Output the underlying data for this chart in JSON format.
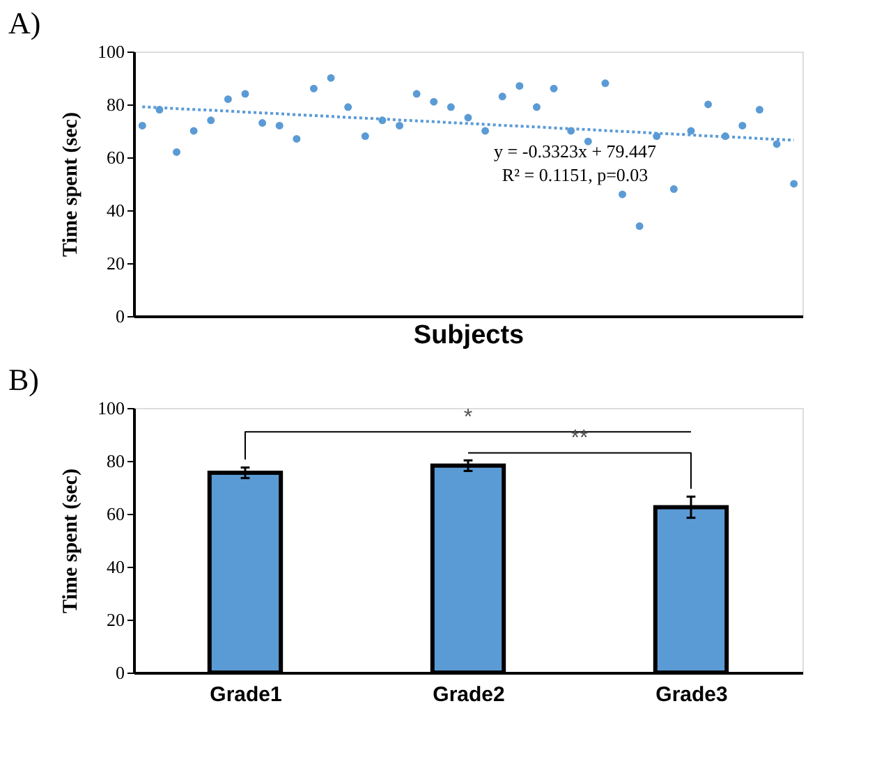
{
  "chart_data": [
    {
      "type": "scatter",
      "title": "A)",
      "xlabel": "Subjects",
      "ylabel": "Time spent (sec)",
      "ylim": [
        0,
        100
      ],
      "yticks": [
        0,
        20,
        40,
        60,
        80,
        100
      ],
      "grid": false,
      "categories": [
        null,
        null,
        null,
        null,
        null,
        null,
        null,
        null,
        null,
        null,
        null,
        null,
        null,
        null,
        null,
        null,
        null,
        null,
        null,
        null,
        null,
        null,
        null,
        null,
        null,
        null,
        null,
        null,
        null,
        null,
        null,
        null,
        null,
        null,
        null,
        null,
        null,
        null,
        null
      ],
      "series": [
        {
          "type": "scatter",
          "marker": "circle",
          "color": "#5b9bd5",
          "values": [
            72,
            78,
            62,
            70,
            74,
            82,
            84,
            73,
            72,
            67,
            86,
            90,
            79,
            68,
            74,
            72,
            84,
            81,
            79,
            75,
            70,
            83,
            87,
            79,
            86,
            70,
            66,
            88,
            46,
            34,
            68,
            48,
            70,
            80,
            68,
            72,
            78,
            65,
            50
          ]
        },
        {
          "type": "line",
          "line_style": "dotted",
          "color": "#5b9bd5",
          "values": [
            79.1,
            78.8,
            78.4,
            78.1,
            77.8,
            77.5,
            77.1,
            76.8,
            76.5,
            76.1,
            75.8,
            75.5,
            75.1,
            74.8,
            74.5,
            74.1,
            73.8,
            73.5,
            73.1,
            72.8,
            72.5,
            72.1,
            71.8,
            71.5,
            71.1,
            70.8,
            70.5,
            70.1,
            69.8,
            69.5,
            69.1,
            68.8,
            68.5,
            68.1,
            67.8,
            67.5,
            67.1,
            66.8,
            66.5
          ]
        }
      ],
      "annotations": [
        "y = -0.3323x + 79.447",
        "R² = 0.1151, p=0.03"
      ]
    },
    {
      "type": "bar",
      "title": "B)",
      "ylabel": "Time spent (sec)",
      "categories": [
        "Grade1",
        "Grade2",
        "Grade3"
      ],
      "values": [
        75.5,
        78.2,
        62.5
      ],
      "errors": [
        2,
        2,
        4
      ],
      "color": "#5b9bd5",
      "ylim": [
        0,
        100
      ],
      "yticks": [
        0,
        20,
        40,
        60,
        80,
        100
      ],
      "grid": false,
      "annotations": [
        "*",
        "**"
      ]
    }
  ]
}
